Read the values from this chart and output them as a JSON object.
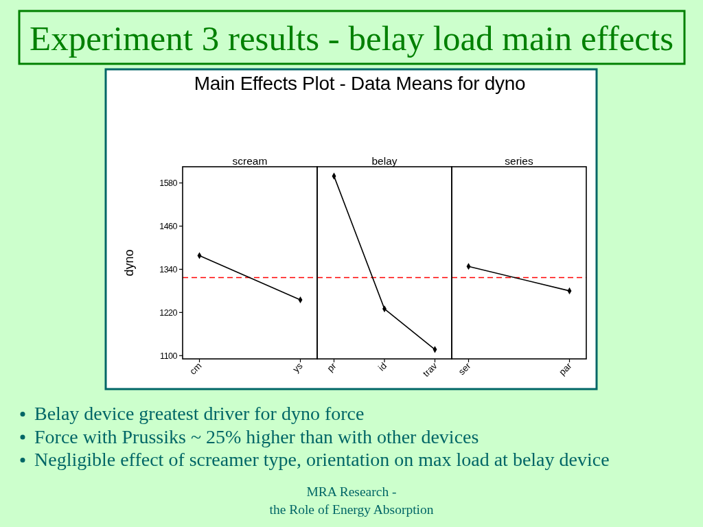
{
  "chart_data": [
    {
      "type": "other",
      "title": "Experiment 3 results - belay load main effects",
      "subtitle": "Main Effects Plot - Data Means for dyno"
    },
    {
      "type": "line",
      "title": "scream",
      "ylabel": "dyno",
      "categories": [
        "cm",
        "ys"
      ],
      "values": [
        1378,
        1255
      ],
      "color": "#000000",
      "marker": "diamond",
      "ylim": [
        1091,
        1625
      ],
      "yticks": [
        1100,
        1220,
        1340,
        1460,
        1580
      ],
      "ref_lines": [
        {
          "axis": "y",
          "value": 1317,
          "color": "#ff0000",
          "line_style": "dashed"
        }
      ]
    },
    {
      "type": "line",
      "title": "belay",
      "categories": [
        "pr",
        "id",
        "trav"
      ],
      "values": [
        1599,
        1230,
        1117
      ],
      "color": "#000000",
      "marker": "diamond",
      "ylim": [
        1091,
        1625
      ],
      "tick_labels": "x",
      "ref_lines": [
        {
          "axis": "y",
          "value": 1317,
          "color": "#ff0000",
          "line_style": "dashed"
        }
      ]
    },
    {
      "type": "line",
      "title": "series",
      "categories": [
        "ser",
        "par"
      ],
      "values": [
        1348,
        1280
      ],
      "color": "#000000",
      "marker": "diamond",
      "ylim": [
        1091,
        1625
      ],
      "tick_labels": "x",
      "ref_lines": [
        {
          "axis": "y",
          "value": 1317,
          "color": "#ff0000",
          "line_style": "dashed"
        }
      ]
    },
    {
      "type": "other",
      "annotations": [
        "Belay device greatest driver for dyno force",
        "Force with Prussiks ~ 25% higher than with other devices",
        "Negligible effect of screamer type, orientation on max load at belay device"
      ]
    },
    {
      "type": "other",
      "annotations": [
        "MRA Research -",
        "the Role of Energy Absorption"
      ]
    }
  ]
}
